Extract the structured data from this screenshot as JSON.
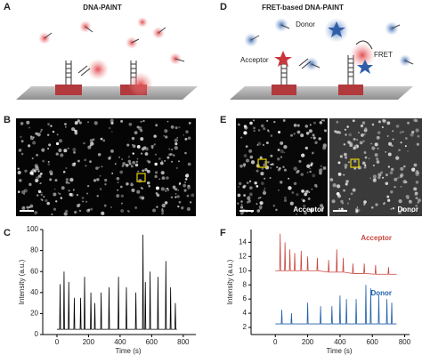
{
  "panels": {
    "letters": [
      "A",
      "B",
      "C",
      "D",
      "E",
      "F"
    ],
    "a_title": "DNA-PAINT",
    "d_title": "FRET-based DNA-PAINT",
    "d_labels": {
      "donor": "Donor",
      "acceptor": "Acceptor",
      "fret": "FRET"
    },
    "e_labels": [
      "Acceptor",
      "Donor"
    ]
  },
  "chart_data": [
    {
      "type": "line",
      "ylabel": "Intensity (a.u.)",
      "xlabel": "Time (s)",
      "xlim": [
        -90,
        880
      ],
      "ylim": [
        0,
        100
      ],
      "xticks": [
        0,
        200,
        400,
        600,
        800
      ],
      "yticks": [
        0,
        20,
        40,
        60,
        80,
        100
      ],
      "series": [
        {
          "color": "#000000",
          "x": [
            0,
            17,
            20,
            23,
            42,
            45,
            48,
            72,
            75,
            78,
            107,
            110,
            113,
            147,
            150,
            153,
            172,
            175,
            178,
            212,
            215,
            218,
            237,
            240,
            243,
            277,
            280,
            283,
            327,
            330,
            333,
            387,
            390,
            393,
            437,
            440,
            443,
            497,
            500,
            503,
            542,
            545,
            548,
            557,
            560,
            563,
            587,
            590,
            593,
            637,
            640,
            643,
            687,
            690,
            693,
            717,
            720,
            723,
            747,
            750,
            753,
            760
          ],
          "values": [
            5,
            5,
            48,
            5,
            5,
            60,
            5,
            5,
            50,
            5,
            5,
            35,
            5,
            5,
            35,
            5,
            5,
            55,
            5,
            5,
            40,
            5,
            5,
            30,
            5,
            5,
            40,
            5,
            5,
            45,
            5,
            5,
            55,
            5,
            5,
            45,
            5,
            5,
            40,
            5,
            5,
            95,
            5,
            5,
            50,
            5,
            5,
            60,
            5,
            5,
            55,
            5,
            5,
            70,
            5,
            5,
            45,
            5,
            5,
            30,
            5,
            5
          ]
        }
      ]
    },
    {
      "type": "line",
      "ylabel": "Intensity (a.u.)",
      "xlabel": "Time (s)",
      "xlim": [
        -150,
        830
      ],
      "ylim": [
        1,
        15.8
      ],
      "xticks": [
        0,
        200,
        400,
        600,
        800
      ],
      "yticks": [
        2,
        4,
        6,
        8,
        10,
        12,
        14
      ],
      "series": [
        {
          "name": "Acceptor",
          "color": "#c9453f",
          "x": [
            0,
            27,
            30,
            33,
            57,
            60,
            63,
            87,
            90,
            93,
            117,
            120,
            123,
            157,
            160,
            163,
            197,
            200,
            203,
            257,
            260,
            263,
            327,
            330,
            333,
            377,
            380,
            383,
            417,
            420,
            423,
            477,
            480,
            483,
            547,
            550,
            553,
            617,
            620,
            623,
            697,
            700,
            703,
            750
          ],
          "values": [
            10,
            10,
            15.2,
            10,
            10,
            14,
            10,
            10,
            13,
            10,
            10,
            12.5,
            10,
            10,
            12.8,
            10,
            10,
            12,
            10,
            10,
            11.8,
            10,
            9.8,
            11.5,
            9.8,
            9.8,
            13,
            9.8,
            9.8,
            11.8,
            9.8,
            9.6,
            11,
            9.6,
            9.6,
            11,
            9.6,
            9.5,
            10.8,
            9.5,
            9.5,
            10.5,
            9.5,
            9.5
          ]
        },
        {
          "name": "Donor",
          "color": "#1f5fa8",
          "x": [
            0,
            37,
            40,
            43,
            97,
            100,
            103,
            197,
            200,
            203,
            277,
            280,
            283,
            347,
            350,
            353,
            397,
            400,
            403,
            437,
            440,
            443,
            497,
            500,
            503,
            557,
            560,
            563,
            587,
            590,
            593,
            637,
            640,
            643,
            687,
            690,
            693,
            717,
            720,
            723,
            750
          ],
          "values": [
            2.5,
            2.5,
            4.5,
            2.5,
            2.5,
            4,
            2.5,
            2.5,
            5.5,
            2.5,
            2.5,
            5,
            2.5,
            2.5,
            5,
            2.5,
            2.5,
            6.5,
            2.5,
            2.5,
            6,
            2.5,
            2.5,
            6,
            2.5,
            2.5,
            8,
            2.5,
            2.5,
            7.5,
            2.5,
            2.5,
            6.5,
            2.5,
            2.5,
            6,
            2.5,
            2.5,
            5.5,
            2.5,
            2.5
          ]
        }
      ]
    }
  ]
}
